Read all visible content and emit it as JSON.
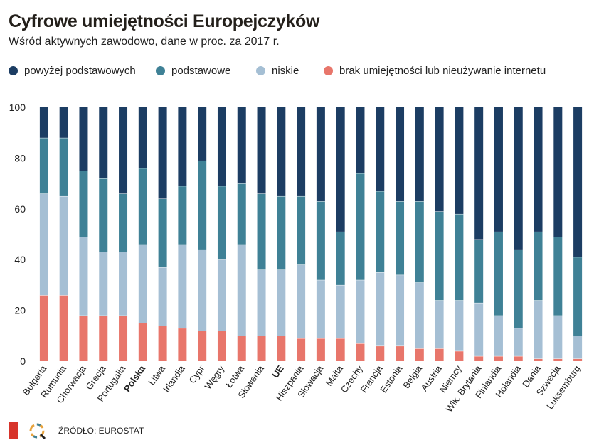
{
  "title": "Cyfrowe umiejętności Europejczyków",
  "subtitle": "Wśród aktywnych zawodowo, dane w proc. za 2017 r.",
  "source": "ŹRÓDŁO: EUROSTAT",
  "logos": {
    "publisher": "W",
    "partner": "Q"
  },
  "legend": [
    {
      "label": "powyżej podstawowych",
      "color": "#1c3d63"
    },
    {
      "label": "podstawowe",
      "color": "#3f8196"
    },
    {
      "label": "niskie",
      "color": "#a5bfd4"
    },
    {
      "label": "brak umiejętności lub nieużywanie internetu",
      "color": "#e8766b"
    }
  ],
  "chart_data": {
    "type": "bar",
    "stacked": true,
    "title": "Cyfrowe umiejętności Europejczyków",
    "subtitle": "Wśród aktywnych zawodowo, dane w proc. za 2017 r.",
    "xlabel": "",
    "ylabel": "",
    "ylim": [
      0,
      100
    ],
    "yticks": [
      0,
      20,
      40,
      60,
      80,
      100
    ],
    "grid": false,
    "legend_position": "top",
    "categories": [
      "Bułgaria",
      "Rumunia",
      "Chorwacja",
      "Grecja",
      "Portugalia",
      "Polska",
      "Litwa",
      "Irlandia",
      "Cypr",
      "Węgry",
      "Łotwa",
      "Słowenia",
      "UE",
      "Hiszpania",
      "Słowacja",
      "Malta",
      "Czechy",
      "Francja",
      "Estonia",
      "Belgia",
      "Austria",
      "Niemcy",
      "Wlk. Brytania",
      "Finlandia",
      "Holandia",
      "Dania",
      "Szwecja",
      "Luksemburg"
    ],
    "bold_categories": [
      "Polska",
      "UE"
    ],
    "series": [
      {
        "name": "brak umiejętności lub nieużywanie internetu",
        "color": "#e8766b",
        "values": [
          26,
          26,
          18,
          18,
          18,
          15,
          14,
          13,
          12,
          12,
          10,
          10,
          10,
          9,
          9,
          9,
          7,
          6,
          6,
          5,
          5,
          4,
          2,
          2,
          2,
          1,
          1,
          1
        ]
      },
      {
        "name": "niskie",
        "color": "#a5bfd4",
        "values": [
          40,
          39,
          31,
          25,
          25,
          31,
          23,
          33,
          32,
          28,
          36,
          26,
          26,
          29,
          23,
          21,
          25,
          29,
          28,
          26,
          19,
          20,
          21,
          16,
          11,
          23,
          17,
          9
        ]
      },
      {
        "name": "podstawowe",
        "color": "#3f8196",
        "values": [
          22,
          23,
          26,
          29,
          23,
          30,
          27,
          23,
          35,
          29,
          24,
          30,
          29,
          27,
          31,
          21,
          42,
          32,
          29,
          32,
          35,
          34,
          25,
          33,
          31,
          27,
          31,
          31
        ]
      },
      {
        "name": "powyżej podstawowych",
        "color": "#1c3d63",
        "values": [
          12,
          12,
          25,
          28,
          34,
          24,
          36,
          31,
          21,
          31,
          30,
          34,
          35,
          35,
          37,
          49,
          26,
          33,
          37,
          37,
          41,
          42,
          52,
          49,
          56,
          49,
          51,
          59
        ]
      }
    ]
  }
}
